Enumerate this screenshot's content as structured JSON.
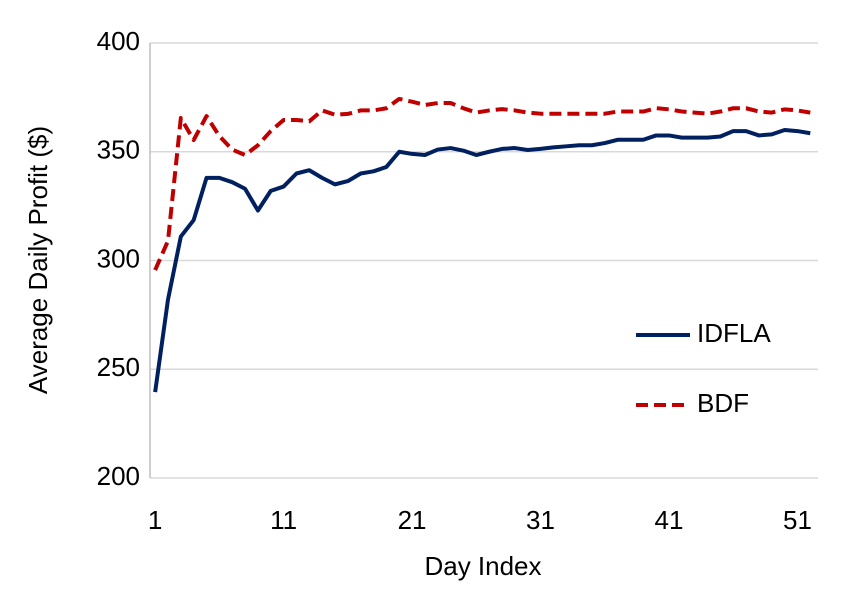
{
  "chart_data": {
    "type": "line",
    "x_label": "Day Index",
    "y_label": "Average Daily Profit ($)",
    "x": [
      1,
      2,
      3,
      4,
      5,
      6,
      7,
      8,
      9,
      10,
      11,
      12,
      13,
      14,
      15,
      16,
      17,
      18,
      19,
      20,
      21,
      22,
      23,
      24,
      25,
      26,
      27,
      28,
      29,
      30,
      31,
      32,
      33,
      34,
      35,
      36,
      37,
      38,
      39,
      40,
      41,
      42,
      43,
      44,
      45,
      46,
      47,
      48,
      49,
      50,
      51,
      52
    ],
    "series": [
      {
        "name": "IDFLA",
        "color": "#002060",
        "dashed": false,
        "values": [
          239.5,
          282,
          311,
          318.6,
          338,
          338,
          336,
          333,
          323,
          332,
          334,
          340,
          341.5,
          338,
          335,
          336.5,
          340,
          341,
          343,
          350,
          349,
          348.5,
          351,
          351.7,
          350.5,
          348.5,
          350,
          351.3,
          351.7,
          350.8,
          351.3,
          352,
          352.5,
          353,
          353,
          354,
          355.5,
          355.5,
          355.5,
          357.5,
          357.5,
          356.5,
          356.5,
          356.5,
          357,
          359.5,
          359.5,
          357.5,
          358,
          360,
          359.5,
          358.5
        ]
      },
      {
        "name": "BDF",
        "color": "#c00000",
        "dashed": true,
        "values": [
          295.6,
          309,
          365.5,
          355.4,
          366.4,
          357.2,
          351,
          348.5,
          353,
          359.5,
          364.6,
          364.6,
          364,
          369,
          367,
          367.4,
          369,
          369,
          370,
          374.3,
          373,
          371.5,
          372.4,
          372.4,
          370,
          368,
          369,
          369.6,
          369,
          368,
          367.5,
          367.5,
          367.5,
          367.5,
          367.5,
          367.5,
          368.5,
          368.5,
          368.5,
          370,
          369.5,
          368.5,
          368,
          367.5,
          368.5,
          370,
          370,
          368.5,
          368,
          369.5,
          369,
          368
        ]
      }
    ],
    "xlim": [
      0.6,
      52.6
    ],
    "xticks": [
      1,
      11,
      21,
      31,
      41,
      51
    ],
    "ylim": [
      200,
      400
    ],
    "yticks": [
      200,
      250,
      300,
      350,
      400
    ],
    "grid": true,
    "legend": "right"
  }
}
